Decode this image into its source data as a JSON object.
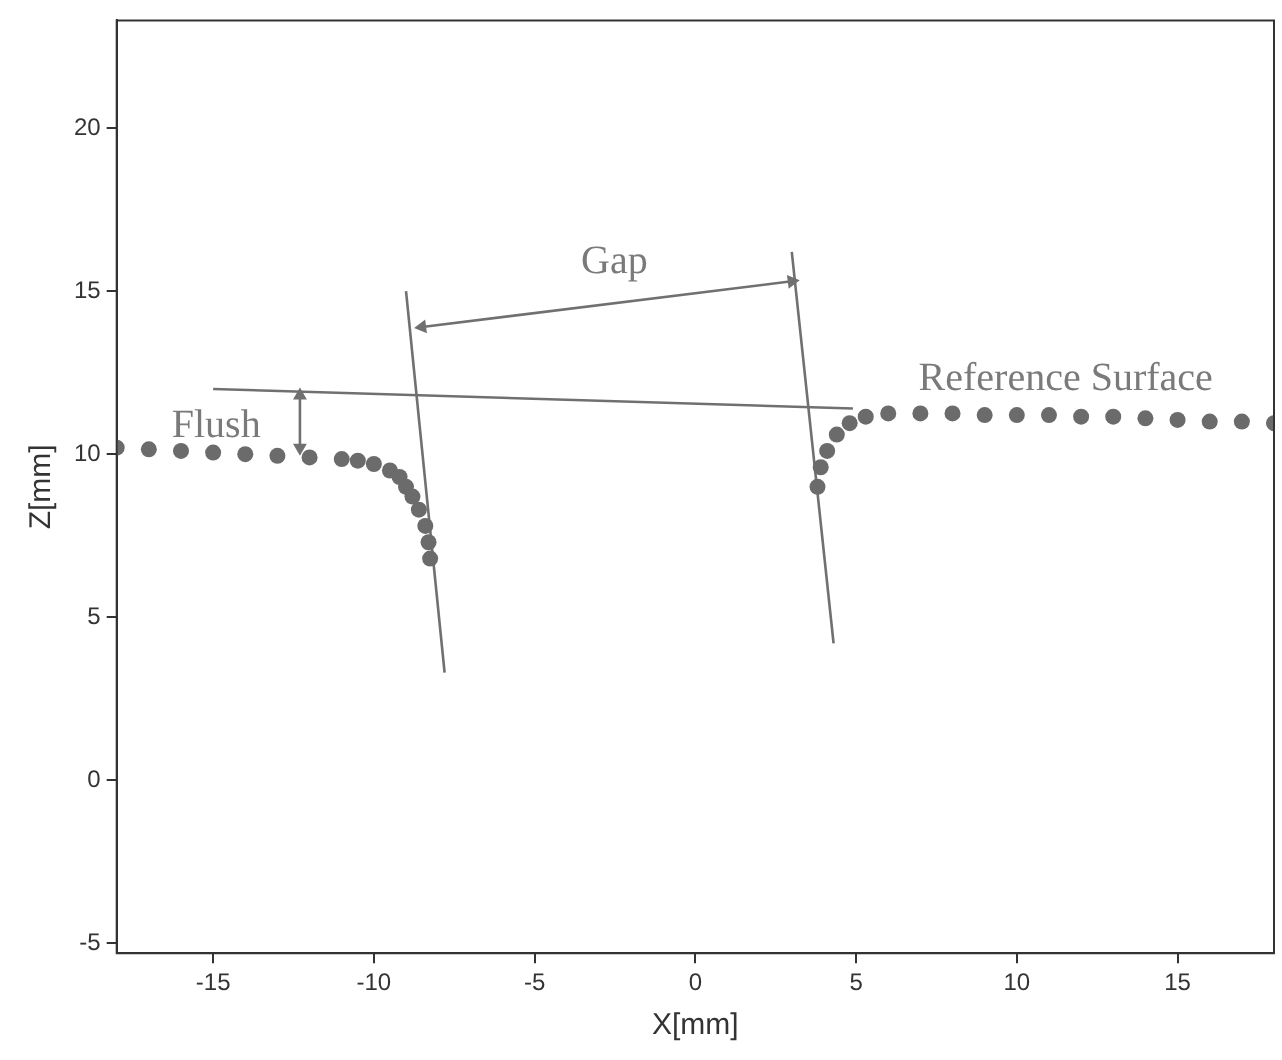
{
  "chart_data": {
    "type": "scatter",
    "xlabel": "X[mm]",
    "ylabel": "Z[mm]",
    "xlim": [
      -18,
      18
    ],
    "ylim": [
      -5.3,
      23.3
    ],
    "xticks": [
      -15,
      -10,
      -5,
      0,
      5,
      10,
      15
    ],
    "yticks": [
      -5,
      0,
      5,
      10,
      15,
      20
    ],
    "grid": false,
    "legend": false,
    "marker": "circle",
    "series": [
      {
        "color": "#6b6b6b",
        "x": [
          -18,
          -17,
          -16,
          -15,
          -14,
          -13,
          -12,
          -11,
          -10.5,
          -10,
          -9.5,
          -9.2,
          -9,
          -8.8,
          -8.6,
          -8.4,
          -8.3,
          -8.25
        ],
        "values": [
          10.2,
          10.15,
          10.1,
          10.05,
          10,
          9.95,
          9.9,
          9.85,
          9.8,
          9.7,
          9.5,
          9.3,
          9,
          8.7,
          8.3,
          7.8,
          7.3,
          6.8
        ]
      },
      {
        "color": "#6b6b6b",
        "x": [
          3.8,
          3.9,
          4.1,
          4.4,
          4.8,
          5.3,
          6,
          7,
          8,
          9,
          10,
          11,
          12,
          13,
          14,
          15,
          16,
          17,
          18
        ],
        "values": [
          9,
          9.6,
          10.1,
          10.6,
          10.95,
          11.15,
          11.25,
          11.25,
          11.25,
          11.2,
          11.2,
          11.2,
          11.15,
          11.15,
          11.1,
          11.05,
          11,
          11,
          10.95
        ]
      },
      {
        "type": "line",
        "color": "#707070",
        "marker": "none",
        "x": [
          -9,
          -7.8
        ],
        "values": [
          15,
          3.3
        ]
      },
      {
        "type": "line",
        "color": "#707070",
        "marker": "none",
        "x": [
          3,
          4.3
        ],
        "values": [
          16.2,
          4.2
        ]
      },
      {
        "type": "line",
        "color": "#707070",
        "marker": "none",
        "x": [
          -15,
          4.9
        ],
        "values": [
          12,
          11.4
        ]
      },
      {
        "type": "line",
        "color": "#707070",
        "marker": "triangle",
        "x": [
          -8.5,
          3
        ],
        "values": [
          13.9,
          15.3
        ]
      },
      {
        "type": "line",
        "color": "#707070",
        "marker": "triangle",
        "x": [
          -12.3,
          -12.3
        ],
        "values": [
          11.8,
          10.2
        ]
      }
    ],
    "annotations": [
      "Gap",
      "Flush",
      "Reference Surface"
    ]
  }
}
